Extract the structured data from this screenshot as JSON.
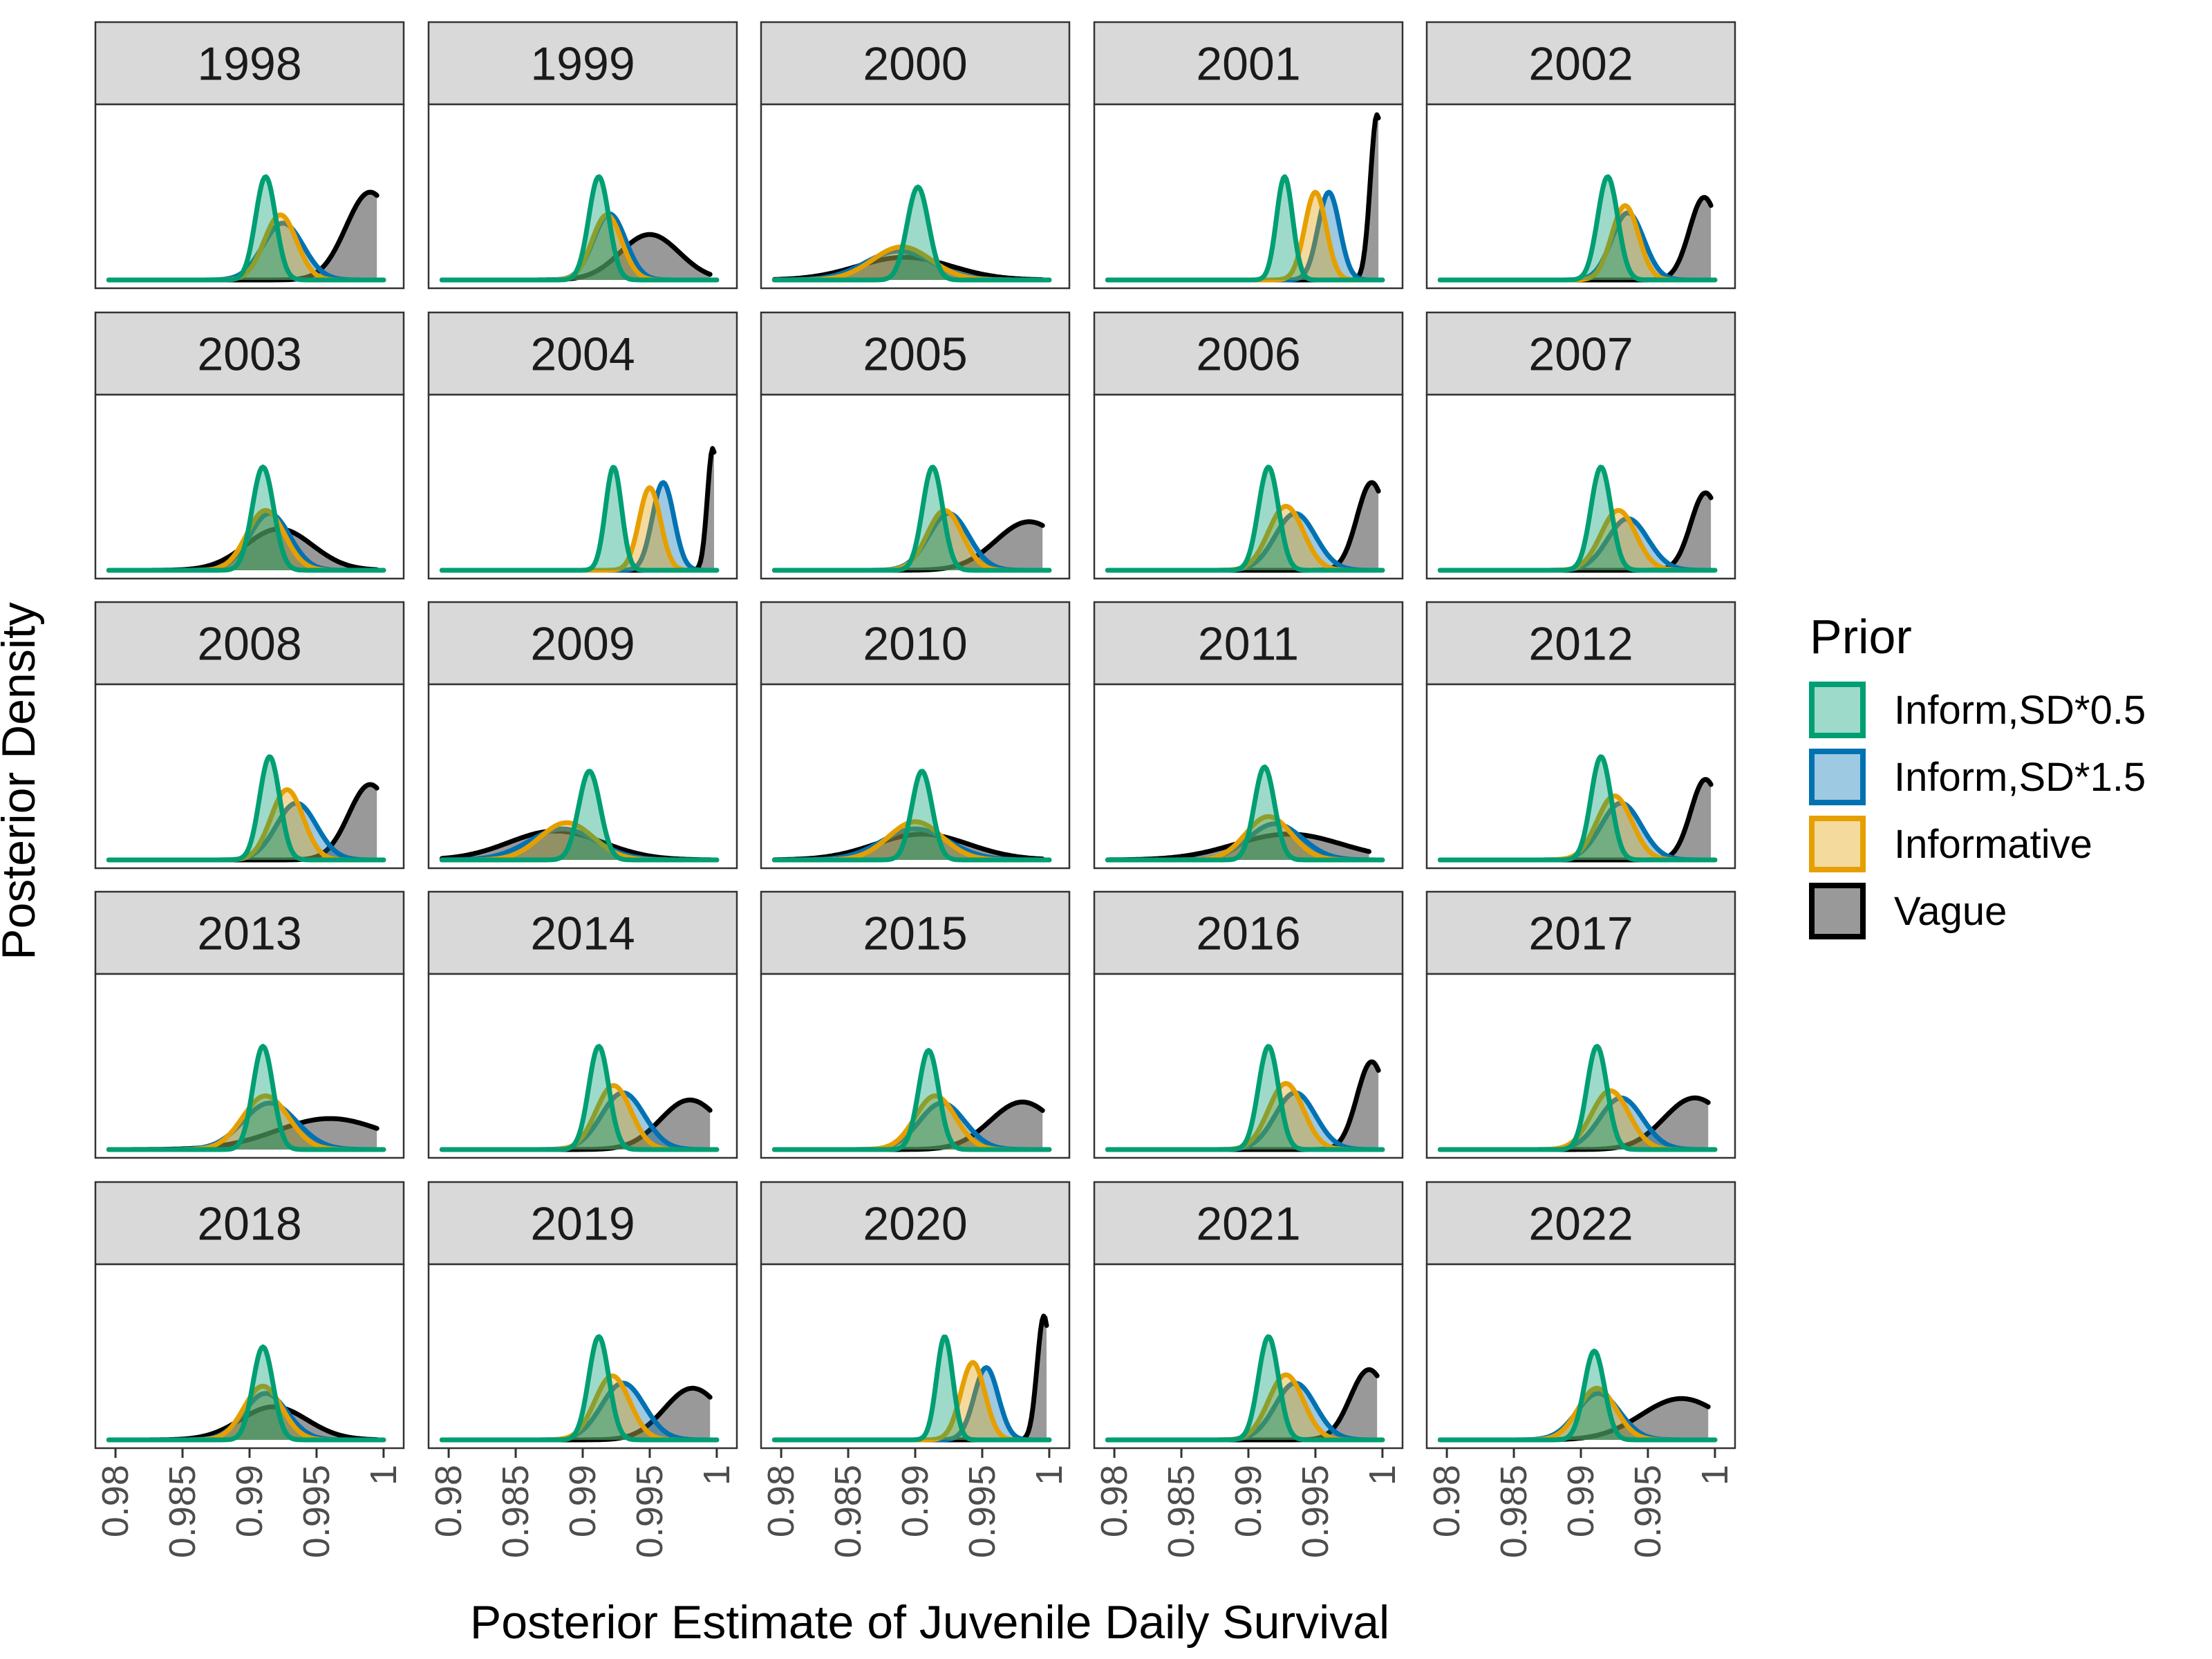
{
  "chart_data": {
    "type": "area",
    "xlabel": "Posterior Estimate of Juvenile Daily Survival",
    "ylabel": "Posterior Density",
    "xlim": [
      0.9785,
      1.0015
    ],
    "x_ticks": [
      0.98,
      0.985,
      0.99,
      0.995,
      1.0
    ],
    "x_tick_labels": [
      "0.98",
      "0.985",
      "0.99",
      "0.995",
      "1"
    ],
    "y_ticks": "none",
    "grid": false,
    "facet_layout": "5x5",
    "legend": {
      "title": "Prior",
      "position": "right",
      "entries": [
        {
          "name": "Inform,SD*0.5",
          "color": "#009E73"
        },
        {
          "name": "Inform,SD*1.5",
          "color": "#0072B2"
        },
        {
          "name": "Informative",
          "color": "#E69F00"
        },
        {
          "name": "Vague",
          "color": "#000000"
        }
      ]
    },
    "series_encoding": [
      "mean",
      "sd",
      "peak_density",
      "max_x"
    ],
    "panels": [
      {
        "year": "1998",
        "series": [
          [
            0.9912,
            0.00075,
            1.0,
            1.0
          ],
          [
            0.9925,
            0.0015,
            0.55,
            1.0
          ],
          [
            0.9923,
            0.0012,
            0.63,
            1.0
          ],
          [
            0.999,
            0.0018,
            0.85,
            0.9995
          ]
        ]
      },
      {
        "year": "1999",
        "series": [
          [
            0.9912,
            0.00075,
            1.0,
            1.0
          ],
          [
            0.992,
            0.0012,
            0.64,
            1.0
          ],
          [
            0.9918,
            0.0011,
            0.63,
            1.0
          ],
          [
            0.995,
            0.0022,
            0.44,
            0.9995
          ]
        ]
      },
      {
        "year": "2000",
        "series": [
          [
            0.9902,
            0.0008,
            0.9,
            1.0
          ],
          [
            0.9888,
            0.0025,
            0.28,
            1.0
          ],
          [
            0.989,
            0.0022,
            0.32,
            1.0
          ],
          [
            0.9892,
            0.0035,
            0.22,
            0.9995
          ]
        ]
      },
      {
        "year": "2001",
        "series": [
          [
            0.9927,
            0.0006,
            1.0,
            1.0
          ],
          [
            0.996,
            0.0008,
            0.85,
            1.0
          ],
          [
            0.995,
            0.0008,
            0.85,
            1.0
          ],
          [
            0.9996,
            0.0005,
            1.6,
            0.9997
          ]
        ]
      },
      {
        "year": "2002",
        "series": [
          [
            0.992,
            0.00075,
            1.0,
            1.0
          ],
          [
            0.9935,
            0.0012,
            0.65,
            1.0
          ],
          [
            0.9933,
            0.001,
            0.72,
            1.0
          ],
          [
            0.9992,
            0.0011,
            0.8,
            0.9997
          ]
        ]
      },
      {
        "year": "2003",
        "series": [
          [
            0.991,
            0.0008,
            1.0,
            1.0
          ],
          [
            0.9915,
            0.0015,
            0.55,
            1.0
          ],
          [
            0.9912,
            0.0014,
            0.58,
            1.0
          ],
          [
            0.9922,
            0.0025,
            0.4,
            0.9995
          ]
        ]
      },
      {
        "year": "2004",
        "series": [
          [
            0.9923,
            0.0006,
            1.0,
            1.0
          ],
          [
            0.996,
            0.0008,
            0.85,
            1.0
          ],
          [
            0.995,
            0.0008,
            0.8,
            1.0
          ],
          [
            0.9997,
            0.0004,
            1.18,
            0.9998
          ]
        ]
      },
      {
        "year": "2005",
        "series": [
          [
            0.9913,
            0.00075,
            1.0,
            1.0
          ],
          [
            0.9925,
            0.0015,
            0.55,
            1.0
          ],
          [
            0.9922,
            0.0013,
            0.58,
            1.0
          ],
          [
            0.9985,
            0.0025,
            0.47,
            0.9995
          ]
        ]
      },
      {
        "year": "2006",
        "series": [
          [
            0.9915,
            0.00075,
            1.0,
            1.0
          ],
          [
            0.9935,
            0.0015,
            0.55,
            1.0
          ],
          [
            0.9928,
            0.0013,
            0.62,
            1.0
          ],
          [
            0.9992,
            0.0011,
            0.85,
            0.9997
          ]
        ]
      },
      {
        "year": "2007",
        "series": [
          [
            0.9915,
            0.00075,
            1.0,
            1.0
          ],
          [
            0.9935,
            0.0015,
            0.5,
            1.0
          ],
          [
            0.9928,
            0.0013,
            0.58,
            1.0
          ],
          [
            0.9993,
            0.0011,
            0.75,
            0.9997
          ]
        ]
      },
      {
        "year": "2008",
        "series": [
          [
            0.9915,
            0.00075,
            1.0,
            1.0
          ],
          [
            0.9935,
            0.0015,
            0.55,
            1.0
          ],
          [
            0.9928,
            0.0012,
            0.68,
            1.0
          ],
          [
            0.999,
            0.0016,
            0.73,
            0.9995
          ]
        ]
      },
      {
        "year": "2009",
        "series": [
          [
            0.9905,
            0.0008,
            0.86,
            1.0
          ],
          [
            0.9885,
            0.0025,
            0.3,
            1.0
          ],
          [
            0.9888,
            0.002,
            0.36,
            1.0
          ],
          [
            0.988,
            0.0035,
            0.28,
            0.9995
          ]
        ]
      },
      {
        "year": "2010",
        "series": [
          [
            0.9905,
            0.00075,
            0.86,
            1.0
          ],
          [
            0.99,
            0.0025,
            0.3,
            1.0
          ],
          [
            0.99,
            0.002,
            0.37,
            1.0
          ],
          [
            0.9905,
            0.0035,
            0.25,
            0.9995
          ]
        ]
      },
      {
        "year": "2011",
        "series": [
          [
            0.9912,
            0.00075,
            0.9,
            1.0
          ],
          [
            0.992,
            0.002,
            0.35,
            1.0
          ],
          [
            0.9915,
            0.0017,
            0.42,
            1.0
          ],
          [
            0.993,
            0.004,
            0.25,
            0.999
          ]
        ]
      },
      {
        "year": "2012",
        "series": [
          [
            0.9915,
            0.00075,
            1.0,
            1.0
          ],
          [
            0.993,
            0.0015,
            0.55,
            1.0
          ],
          [
            0.9925,
            0.0013,
            0.62,
            1.0
          ],
          [
            0.9993,
            0.0011,
            0.78,
            0.9997
          ]
        ]
      },
      {
        "year": "2013",
        "series": [
          [
            0.991,
            0.00075,
            1.0,
            1.0
          ],
          [
            0.9915,
            0.002,
            0.45,
            1.0
          ],
          [
            0.9912,
            0.0017,
            0.52,
            1.0
          ],
          [
            0.996,
            0.004,
            0.3,
            0.9995
          ]
        ]
      },
      {
        "year": "2014",
        "series": [
          [
            0.9912,
            0.00075,
            1.0,
            1.0
          ],
          [
            0.993,
            0.0016,
            0.55,
            1.0
          ],
          [
            0.9923,
            0.0013,
            0.62,
            1.0
          ],
          [
            0.998,
            0.0022,
            0.48,
            0.9995
          ]
        ]
      },
      {
        "year": "2015",
        "series": [
          [
            0.991,
            0.00075,
            0.96,
            1.0
          ],
          [
            0.992,
            0.0017,
            0.45,
            1.0
          ],
          [
            0.9915,
            0.0015,
            0.52,
            1.0
          ],
          [
            0.998,
            0.0024,
            0.46,
            0.9995
          ]
        ]
      },
      {
        "year": "2016",
        "series": [
          [
            0.9915,
            0.00075,
            1.0,
            1.0
          ],
          [
            0.9935,
            0.0015,
            0.55,
            1.0
          ],
          [
            0.9928,
            0.0013,
            0.64,
            1.0
          ],
          [
            0.9992,
            0.0011,
            0.85,
            0.9997
          ]
        ]
      },
      {
        "year": "2017",
        "series": [
          [
            0.9912,
            0.00075,
            1.0,
            1.0
          ],
          [
            0.993,
            0.0016,
            0.5,
            1.0
          ],
          [
            0.9922,
            0.0014,
            0.57,
            1.0
          ],
          [
            0.9985,
            0.0023,
            0.5,
            0.9995
          ]
        ]
      },
      {
        "year": "2018",
        "series": [
          [
            0.991,
            0.00075,
            0.9,
            1.0
          ],
          [
            0.9912,
            0.0016,
            0.45,
            1.0
          ],
          [
            0.991,
            0.0014,
            0.52,
            1.0
          ],
          [
            0.9918,
            0.0025,
            0.32,
            0.9995
          ]
        ]
      },
      {
        "year": "2019",
        "series": [
          [
            0.9912,
            0.00075,
            1.0,
            1.0
          ],
          [
            0.993,
            0.0016,
            0.55,
            1.0
          ],
          [
            0.9922,
            0.0013,
            0.62,
            1.0
          ],
          [
            0.9982,
            0.0021,
            0.5,
            0.9995
          ]
        ]
      },
      {
        "year": "2020",
        "series": [
          [
            0.9922,
            0.0006,
            1.0,
            1.0
          ],
          [
            0.9953,
            0.0009,
            0.7,
            1.0
          ],
          [
            0.9943,
            0.0009,
            0.75,
            1.0
          ],
          [
            0.9996,
            0.0005,
            1.2,
            0.9998
          ]
        ]
      },
      {
        "year": "2021",
        "series": [
          [
            0.9915,
            0.00075,
            1.0,
            1.0
          ],
          [
            0.9935,
            0.0015,
            0.55,
            1.0
          ],
          [
            0.9928,
            0.0013,
            0.63,
            1.0
          ],
          [
            0.999,
            0.0014,
            0.68,
            0.9996
          ]
        ]
      },
      {
        "year": "2022",
        "series": [
          [
            0.991,
            0.00075,
            0.86,
            1.0
          ],
          [
            0.9913,
            0.0016,
            0.45,
            1.0
          ],
          [
            0.9912,
            0.0014,
            0.5,
            1.0
          ],
          [
            0.9975,
            0.003,
            0.4,
            0.9995
          ]
        ]
      }
    ]
  }
}
